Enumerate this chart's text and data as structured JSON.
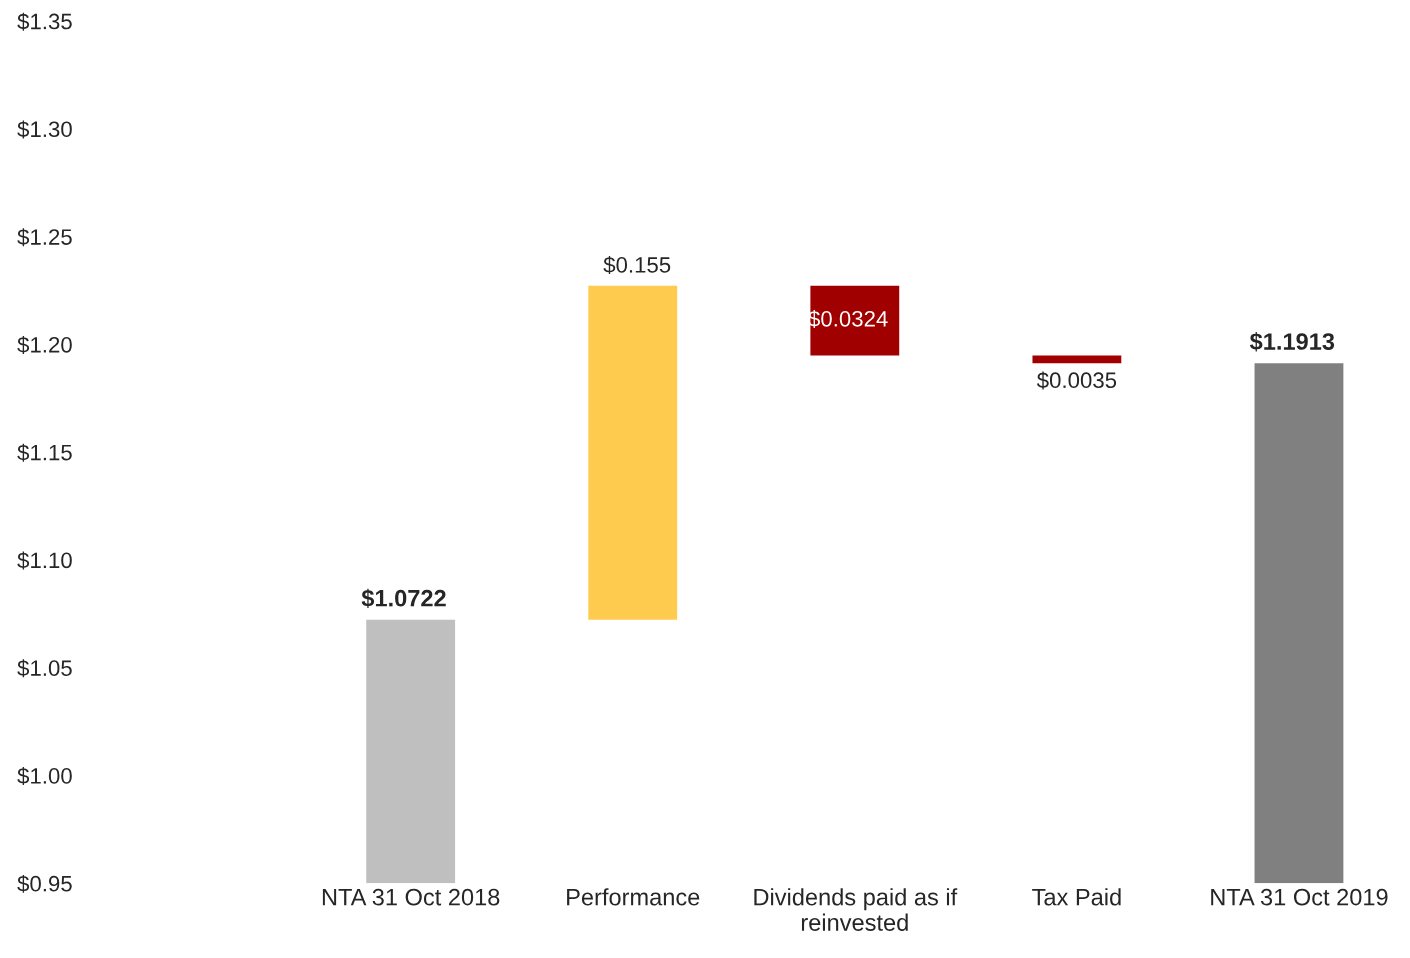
{
  "chart_data": {
    "type": "bar",
    "categories": [
      null,
      "NTA 31 Oct 2018",
      "Performance",
      "Dividends paid as if\nreinvested",
      "Tax Paid",
      "NTA 31 Oct 2019"
    ],
    "values": [
      null,
      0.1222,
      0.155,
      -0.0324,
      -0.0035,
      0.2413
    ],
    "base": [
      null,
      0.95,
      1.0722,
      1.2272,
      1.1948,
      0.95
    ],
    "colors": [
      "#bfbfbf",
      "#bfbfbf",
      "#fecb4e",
      "#a00000",
      "#a00000",
      "#808080"
    ],
    "value_labels": [
      null,
      "$1.0722",
      "$0.155",
      "$0.0324",
      "$0.0035",
      "$1.1913"
    ],
    "ylim": [
      0.95,
      1.35
    ],
    "yticks": [
      {
        "value": 0.95,
        "label": "$0.95"
      },
      {
        "value": 1.0,
        "label": "$1.00"
      },
      {
        "value": 1.05,
        "label": "$1.05"
      },
      {
        "value": 1.1,
        "label": "$1.10"
      },
      {
        "value": 1.15,
        "label": "$1.15"
      },
      {
        "value": 1.2,
        "label": "$1.20"
      },
      {
        "value": 1.25,
        "label": "$1.25"
      },
      {
        "value": 1.3,
        "label": "$1.30"
      },
      {
        "value": 1.35,
        "label": "$1.35"
      }
    ],
    "grid": false,
    "legend": false
  }
}
